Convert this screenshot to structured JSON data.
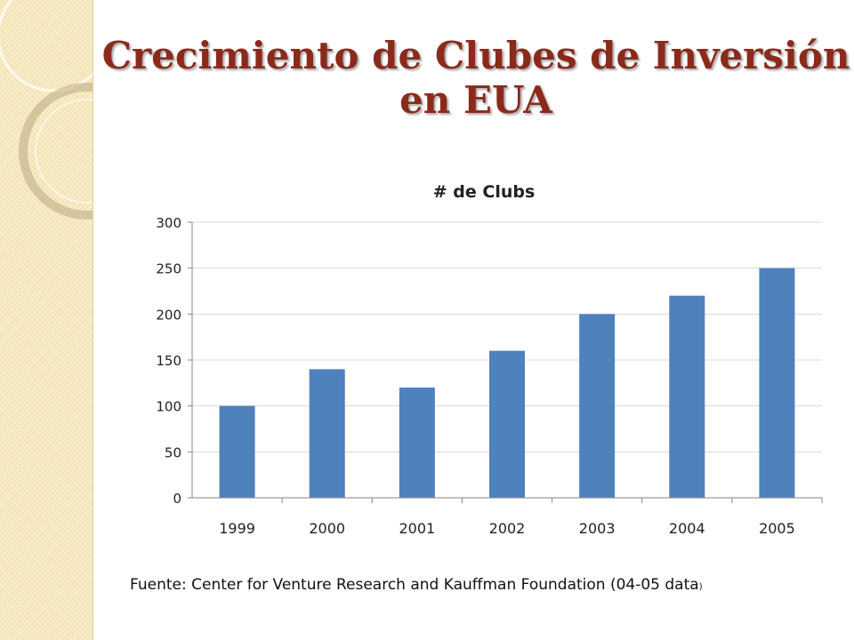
{
  "slide": {
    "title_line1": "Crecimiento de Clubes de Inversión",
    "title_line2": "en EUA",
    "source_main": "Fuente:  Center for  Venture Research  and Kauffman Foundation (04-05 data",
    "source_tail": ")"
  },
  "colors": {
    "title": "#8b2a1b",
    "bar": "#4f81bd",
    "grid": "#d9d9d9",
    "side_panel": "#f6e9bf"
  },
  "chart_data": {
    "type": "bar",
    "title": "# de Clubs",
    "categories": [
      "1999",
      "2000",
      "2001",
      "2002",
      "2003",
      "2004",
      "2005"
    ],
    "series": [
      {
        "values": [
          100,
          140,
          120,
          160,
          200,
          220,
          250
        ]
      }
    ],
    "ylim": [
      0,
      300
    ],
    "yticks": [
      0,
      50,
      100,
      150,
      200,
      250,
      300
    ],
    "grid": true,
    "legend": "none"
  }
}
